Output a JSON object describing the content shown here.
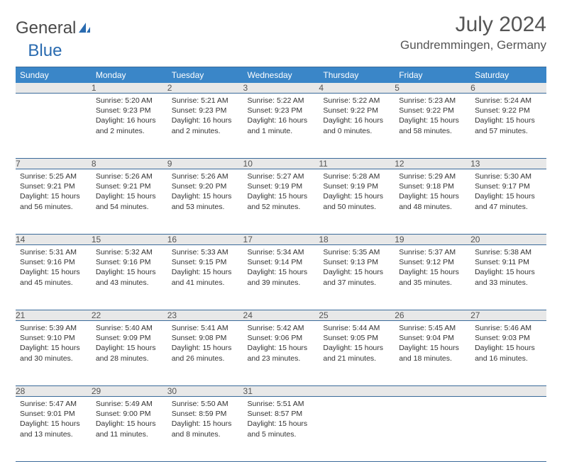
{
  "brand": {
    "part1": "General",
    "part2": "Blue"
  },
  "title": "July 2024",
  "location": "Gundremmingen, Germany",
  "colors": {
    "header_bg": "#3a86c8",
    "header_text": "#ffffff",
    "daynum_bg": "#e8e8e8",
    "border": "#3a6a9a",
    "brand_gray": "#4a4a4a",
    "brand_blue": "#2a6bb0"
  },
  "day_headers": [
    "Sunday",
    "Monday",
    "Tuesday",
    "Wednesday",
    "Thursday",
    "Friday",
    "Saturday"
  ],
  "weeks": [
    {
      "nums": [
        "",
        "1",
        "2",
        "3",
        "4",
        "5",
        "6"
      ],
      "cells": [
        {},
        {
          "sunrise": "Sunrise: 5:20 AM",
          "sunset": "Sunset: 9:23 PM",
          "daylight": "Daylight: 16 hours and 2 minutes."
        },
        {
          "sunrise": "Sunrise: 5:21 AM",
          "sunset": "Sunset: 9:23 PM",
          "daylight": "Daylight: 16 hours and 2 minutes."
        },
        {
          "sunrise": "Sunrise: 5:22 AM",
          "sunset": "Sunset: 9:23 PM",
          "daylight": "Daylight: 16 hours and 1 minute."
        },
        {
          "sunrise": "Sunrise: 5:22 AM",
          "sunset": "Sunset: 9:22 PM",
          "daylight": "Daylight: 16 hours and 0 minutes."
        },
        {
          "sunrise": "Sunrise: 5:23 AM",
          "sunset": "Sunset: 9:22 PM",
          "daylight": "Daylight: 15 hours and 58 minutes."
        },
        {
          "sunrise": "Sunrise: 5:24 AM",
          "sunset": "Sunset: 9:22 PM",
          "daylight": "Daylight: 15 hours and 57 minutes."
        }
      ]
    },
    {
      "nums": [
        "7",
        "8",
        "9",
        "10",
        "11",
        "12",
        "13"
      ],
      "cells": [
        {
          "sunrise": "Sunrise: 5:25 AM",
          "sunset": "Sunset: 9:21 PM",
          "daylight": "Daylight: 15 hours and 56 minutes."
        },
        {
          "sunrise": "Sunrise: 5:26 AM",
          "sunset": "Sunset: 9:21 PM",
          "daylight": "Daylight: 15 hours and 54 minutes."
        },
        {
          "sunrise": "Sunrise: 5:26 AM",
          "sunset": "Sunset: 9:20 PM",
          "daylight": "Daylight: 15 hours and 53 minutes."
        },
        {
          "sunrise": "Sunrise: 5:27 AM",
          "sunset": "Sunset: 9:19 PM",
          "daylight": "Daylight: 15 hours and 52 minutes."
        },
        {
          "sunrise": "Sunrise: 5:28 AM",
          "sunset": "Sunset: 9:19 PM",
          "daylight": "Daylight: 15 hours and 50 minutes."
        },
        {
          "sunrise": "Sunrise: 5:29 AM",
          "sunset": "Sunset: 9:18 PM",
          "daylight": "Daylight: 15 hours and 48 minutes."
        },
        {
          "sunrise": "Sunrise: 5:30 AM",
          "sunset": "Sunset: 9:17 PM",
          "daylight": "Daylight: 15 hours and 47 minutes."
        }
      ]
    },
    {
      "nums": [
        "14",
        "15",
        "16",
        "17",
        "18",
        "19",
        "20"
      ],
      "cells": [
        {
          "sunrise": "Sunrise: 5:31 AM",
          "sunset": "Sunset: 9:16 PM",
          "daylight": "Daylight: 15 hours and 45 minutes."
        },
        {
          "sunrise": "Sunrise: 5:32 AM",
          "sunset": "Sunset: 9:16 PM",
          "daylight": "Daylight: 15 hours and 43 minutes."
        },
        {
          "sunrise": "Sunrise: 5:33 AM",
          "sunset": "Sunset: 9:15 PM",
          "daylight": "Daylight: 15 hours and 41 minutes."
        },
        {
          "sunrise": "Sunrise: 5:34 AM",
          "sunset": "Sunset: 9:14 PM",
          "daylight": "Daylight: 15 hours and 39 minutes."
        },
        {
          "sunrise": "Sunrise: 5:35 AM",
          "sunset": "Sunset: 9:13 PM",
          "daylight": "Daylight: 15 hours and 37 minutes."
        },
        {
          "sunrise": "Sunrise: 5:37 AM",
          "sunset": "Sunset: 9:12 PM",
          "daylight": "Daylight: 15 hours and 35 minutes."
        },
        {
          "sunrise": "Sunrise: 5:38 AM",
          "sunset": "Sunset: 9:11 PM",
          "daylight": "Daylight: 15 hours and 33 minutes."
        }
      ]
    },
    {
      "nums": [
        "21",
        "22",
        "23",
        "24",
        "25",
        "26",
        "27"
      ],
      "cells": [
        {
          "sunrise": "Sunrise: 5:39 AM",
          "sunset": "Sunset: 9:10 PM",
          "daylight": "Daylight: 15 hours and 30 minutes."
        },
        {
          "sunrise": "Sunrise: 5:40 AM",
          "sunset": "Sunset: 9:09 PM",
          "daylight": "Daylight: 15 hours and 28 minutes."
        },
        {
          "sunrise": "Sunrise: 5:41 AM",
          "sunset": "Sunset: 9:08 PM",
          "daylight": "Daylight: 15 hours and 26 minutes."
        },
        {
          "sunrise": "Sunrise: 5:42 AM",
          "sunset": "Sunset: 9:06 PM",
          "daylight": "Daylight: 15 hours and 23 minutes."
        },
        {
          "sunrise": "Sunrise: 5:44 AM",
          "sunset": "Sunset: 9:05 PM",
          "daylight": "Daylight: 15 hours and 21 minutes."
        },
        {
          "sunrise": "Sunrise: 5:45 AM",
          "sunset": "Sunset: 9:04 PM",
          "daylight": "Daylight: 15 hours and 18 minutes."
        },
        {
          "sunrise": "Sunrise: 5:46 AM",
          "sunset": "Sunset: 9:03 PM",
          "daylight": "Daylight: 15 hours and 16 minutes."
        }
      ]
    },
    {
      "nums": [
        "28",
        "29",
        "30",
        "31",
        "",
        "",
        ""
      ],
      "cells": [
        {
          "sunrise": "Sunrise: 5:47 AM",
          "sunset": "Sunset: 9:01 PM",
          "daylight": "Daylight: 15 hours and 13 minutes."
        },
        {
          "sunrise": "Sunrise: 5:49 AM",
          "sunset": "Sunset: 9:00 PM",
          "daylight": "Daylight: 15 hours and 11 minutes."
        },
        {
          "sunrise": "Sunrise: 5:50 AM",
          "sunset": "Sunset: 8:59 PM",
          "daylight": "Daylight: 15 hours and 8 minutes."
        },
        {
          "sunrise": "Sunrise: 5:51 AM",
          "sunset": "Sunset: 8:57 PM",
          "daylight": "Daylight: 15 hours and 5 minutes."
        },
        {},
        {},
        {}
      ]
    }
  ]
}
